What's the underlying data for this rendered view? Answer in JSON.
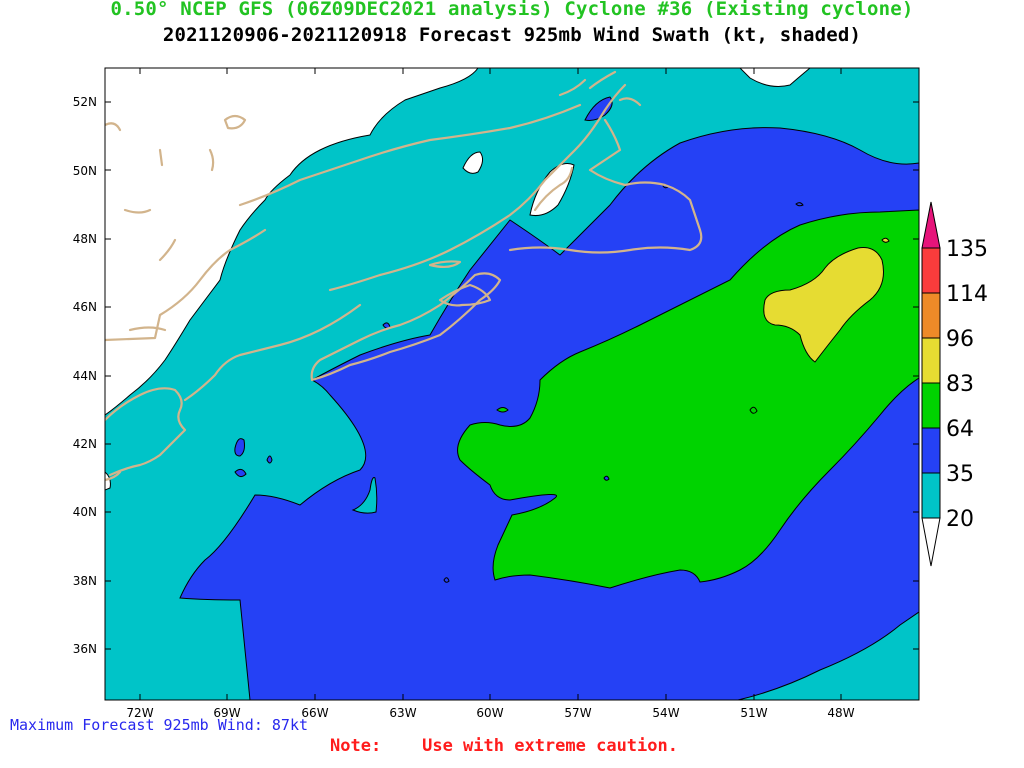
{
  "header": {
    "title_line1": "0.50° NCEP GFS (06Z09DEC2021 analysis) Cyclone #36 (Existing cyclone)",
    "title_line2": "2021120906-2021120918 Forecast 925mb Wind Swath (kt, shaded)"
  },
  "map": {
    "lat_labels": [
      "52N",
      "50N",
      "48N",
      "46N",
      "44N",
      "42N",
      "40N",
      "38N",
      "36N"
    ],
    "lon_labels": [
      "72W",
      "69W",
      "66W",
      "63W",
      "60W",
      "57W",
      "54W",
      "51W",
      "48W"
    ],
    "colors": {
      "land": "#ffffff",
      "coastline": "#d2b48c",
      "band_20_35": "#00c4c8",
      "band_35_64": "#2541f5",
      "band_64_83": "#00d300",
      "band_83_96": "#e6dc32",
      "band_96_114": "#ee8a28",
      "band_114_135": "#fa3c3c",
      "band_over_135": "#e6147a"
    }
  },
  "legend": {
    "unit": "kt",
    "ticks": [
      "135",
      "114",
      "96",
      "83",
      "64",
      "35",
      "20"
    ],
    "bands": [
      {
        "from": 135,
        "to": null,
        "color": "#e6147a"
      },
      {
        "from": 114,
        "to": 135,
        "color": "#fa3c3c"
      },
      {
        "from": 96,
        "to": 114,
        "color": "#ee8a28"
      },
      {
        "from": 83,
        "to": 96,
        "color": "#e6dc32"
      },
      {
        "from": 64,
        "to": 83,
        "color": "#00d300"
      },
      {
        "from": 35,
        "to": 64,
        "color": "#2541f5"
      },
      {
        "from": 20,
        "to": 35,
        "color": "#00c4c8"
      },
      {
        "from": null,
        "to": 20,
        "color": "#ffffff"
      }
    ]
  },
  "footer": {
    "max_wind_text": "Maximum Forecast 925mb Wind: 87kt",
    "note_text": "Note:    Use with extreme caution."
  }
}
